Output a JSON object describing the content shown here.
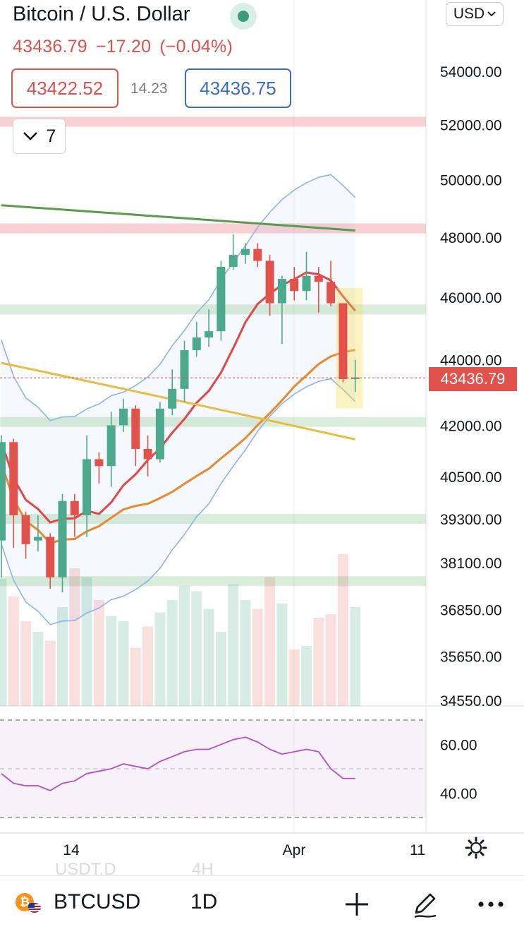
{
  "header": {
    "title": "Bitcoin / U.S. Dollar",
    "last": "43436.79",
    "change": "−17.20",
    "change_pct": "(−0.04%)",
    "sell_price": "43422.52",
    "spread": "14.23",
    "buy_price": "43436.75",
    "indicators_count": "7",
    "currency": "USD"
  },
  "bottom_bar": {
    "symbol": "BTCUSD",
    "timeframe": "1D",
    "ghost_left": "USDT.D",
    "ghost_right": "4H"
  },
  "colors": {
    "up": "#4ca98b",
    "down": "#e0524b",
    "ma_green": "#5b9a4f",
    "ma_yellow": "#e8bd45",
    "ma_orange": "#e58a2e",
    "ma_red": "#e04848",
    "bollinger": "#8fb3e6",
    "rsi": "#b44fc4"
  },
  "chart_data": {
    "type": "candlestick",
    "symbol": "BTCUSD",
    "interval": "1D",
    "price_axis": {
      "ticks": [
        "54000.00",
        "52000.00",
        "50000.00",
        "48000.00",
        "46000.00",
        "44000.00",
        "42000.00",
        "40500.00",
        "39300.00",
        "38100.00",
        "36850.00",
        "35650.00",
        "34550.00"
      ],
      "scale": "logarithmic"
    },
    "last_price_label": "43436.79",
    "time_axis": {
      "ticks": [
        "14",
        "Apr",
        "11"
      ]
    },
    "candles": [
      {
        "o": 38700,
        "h": 41700,
        "l": 37700,
        "c": 41500
      },
      {
        "o": 41500,
        "h": 41600,
        "l": 38500,
        "c": 39400
      },
      {
        "o": 39400,
        "h": 39500,
        "l": 38200,
        "c": 38600
      },
      {
        "o": 38700,
        "h": 39400,
        "l": 38400,
        "c": 38800
      },
      {
        "o": 38800,
        "h": 38900,
        "l": 37400,
        "c": 37700
      },
      {
        "o": 37700,
        "h": 40000,
        "l": 37300,
        "c": 39800
      },
      {
        "o": 39800,
        "h": 40000,
        "l": 38800,
        "c": 39400
      },
      {
        "o": 39400,
        "h": 41700,
        "l": 38800,
        "c": 41000
      },
      {
        "o": 41000,
        "h": 41200,
        "l": 40300,
        "c": 40800
      },
      {
        "o": 40800,
        "h": 42400,
        "l": 40200,
        "c": 42000
      },
      {
        "o": 42000,
        "h": 42800,
        "l": 41800,
        "c": 42500
      },
      {
        "o": 42500,
        "h": 42600,
        "l": 40800,
        "c": 41300
      },
      {
        "o": 41300,
        "h": 41700,
        "l": 40500,
        "c": 41000
      },
      {
        "o": 41000,
        "h": 42700,
        "l": 40900,
        "c": 42500
      },
      {
        "o": 42500,
        "h": 43700,
        "l": 42300,
        "c": 43100
      },
      {
        "o": 43100,
        "h": 44600,
        "l": 42700,
        "c": 44300
      },
      {
        "o": 44300,
        "h": 45200,
        "l": 44100,
        "c": 44700
      },
      {
        "o": 44700,
        "h": 45600,
        "l": 44400,
        "c": 44900
      },
      {
        "o": 44900,
        "h": 47200,
        "l": 44600,
        "c": 47000
      },
      {
        "o": 47000,
        "h": 48100,
        "l": 46900,
        "c": 47400
      },
      {
        "o": 47400,
        "h": 47800,
        "l": 47100,
        "c": 47600
      },
      {
        "o": 47600,
        "h": 47800,
        "l": 47000,
        "c": 47200
      },
      {
        "o": 47200,
        "h": 47400,
        "l": 45400,
        "c": 45800
      },
      {
        "o": 45800,
        "h": 46700,
        "l": 44500,
        "c": 46600
      },
      {
        "o": 46600,
        "h": 47000,
        "l": 45900,
        "c": 46200
      },
      {
        "o": 46200,
        "h": 47500,
        "l": 45900,
        "c": 46700
      },
      {
        "o": 46700,
        "h": 47000,
        "l": 45500,
        "c": 46500
      },
      {
        "o": 46500,
        "h": 47200,
        "l": 45700,
        "c": 45800
      },
      {
        "o": 45800,
        "h": 45800,
        "l": 43300,
        "c": 43400
      },
      {
        "o": 43400,
        "h": 44000,
        "l": 43000,
        "c": 43450
      }
    ],
    "volume": [
      0.72,
      0.62,
      0.48,
      0.42,
      0.37,
      0.56,
      0.78,
      0.73,
      0.6,
      0.51,
      0.48,
      0.33,
      0.45,
      0.53,
      0.6,
      0.68,
      0.65,
      0.55,
      0.42,
      0.69,
      0.6,
      0.55,
      0.73,
      0.58,
      0.32,
      0.34,
      0.5,
      0.52,
      0.86,
      0.56
    ],
    "horizontal_zones": [
      {
        "price": 52100,
        "color": "red"
      },
      {
        "price": 48300,
        "color": "red"
      },
      {
        "price": 45600,
        "color": "green"
      },
      {
        "price": 42100,
        "color": "green"
      },
      {
        "price": 39300,
        "color": "green"
      },
      {
        "price": 37600,
        "color": "green"
      }
    ],
    "rsi": {
      "axis_ticks": [
        "60.00",
        "40.00"
      ],
      "values": [
        48,
        44,
        43,
        43,
        41,
        44,
        45,
        48,
        49,
        50,
        52,
        51,
        50,
        53,
        55,
        57,
        58,
        58,
        60,
        62,
        63,
        61,
        58,
        56,
        57,
        58,
        57,
        50,
        46,
        46
      ]
    },
    "title": "Bitcoin / U.S. Dollar",
    "legend": "none",
    "grid": true
  }
}
